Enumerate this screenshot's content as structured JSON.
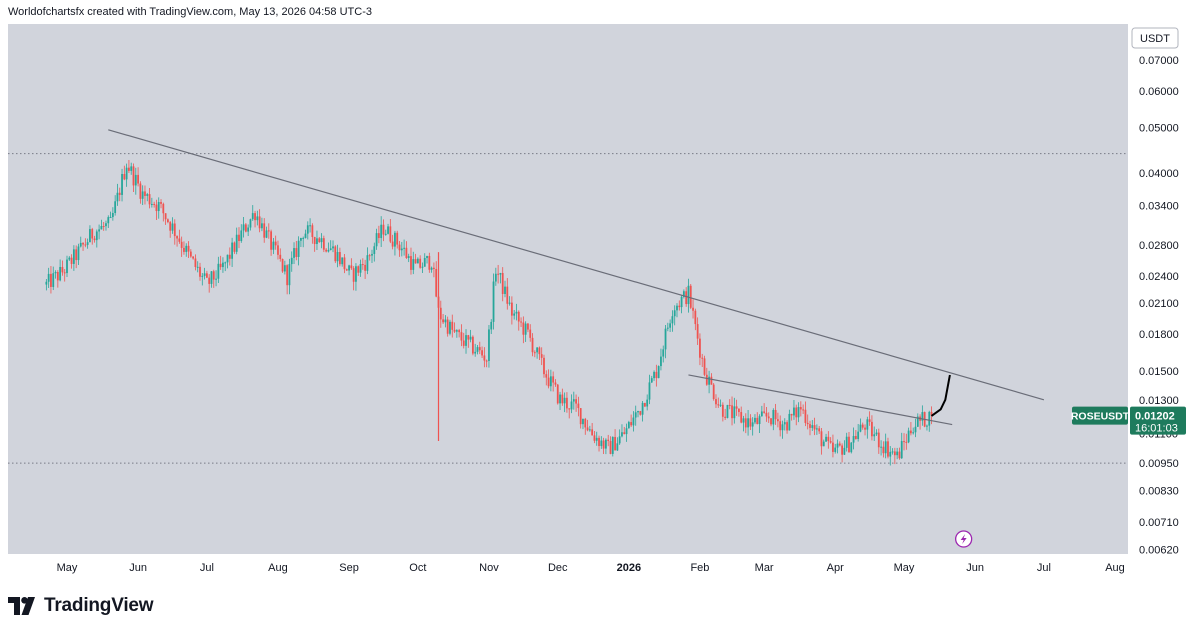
{
  "header": {
    "attribution": "Worldofchartsfx created with TradingView.com, May 13, 2026 04:58 UTC-3"
  },
  "chart": {
    "currency_label": "USDT",
    "symbol_label": "ROSEUSDT",
    "last_price": "0.01202",
    "countdown": "16:01:03",
    "colors": {
      "background": "#d1d4dc",
      "up": "#26a69a",
      "down": "#ef5350",
      "trendline": "#6a6d78",
      "badge": "#1e7b5d",
      "projection": "#000000",
      "flash_icon": "#9c27b0"
    },
    "icons": [
      "flash-icon"
    ]
  },
  "footer": {
    "brand": "TradingView"
  },
  "chart_data": {
    "type": "candlestick",
    "y_scale": "log",
    "y_ticks": [
      "0.07000",
      "0.06000",
      "0.05000",
      "0.04000",
      "0.03400",
      "0.02800",
      "0.02400",
      "0.02100",
      "0.01800",
      "0.01500",
      "0.01300",
      "0.01100",
      "0.00950",
      "0.00830",
      "0.00710",
      "0.00620"
    ],
    "x_ticks": [
      "May",
      "Jun",
      "Jul",
      "Aug",
      "Sep",
      "Oct",
      "Nov",
      "Dec",
      "2026",
      "Feb",
      "Mar",
      "Apr",
      "May",
      "Jun",
      "Jul",
      "Aug"
    ],
    "close_path": [
      [
        "2025-04-22",
        0.023
      ],
      [
        "2025-04-29",
        0.0245
      ],
      [
        "2025-05-06",
        0.027
      ],
      [
        "2025-05-13",
        0.03
      ],
      [
        "2025-05-20",
        0.031
      ],
      [
        "2025-05-27",
        0.042
      ],
      [
        "2025-06-03",
        0.036
      ],
      [
        "2025-06-10",
        0.034
      ],
      [
        "2025-06-17",
        0.03
      ],
      [
        "2025-06-24",
        0.026
      ],
      [
        "2025-07-01",
        0.023
      ],
      [
        "2025-07-08",
        0.025
      ],
      [
        "2025-07-15",
        0.029
      ],
      [
        "2025-07-22",
        0.033
      ],
      [
        "2025-07-29",
        0.028
      ],
      [
        "2025-08-05",
        0.024
      ],
      [
        "2025-08-12",
        0.03
      ],
      [
        "2025-08-19",
        0.029
      ],
      [
        "2025-08-26",
        0.027
      ],
      [
        "2025-09-02",
        0.024
      ],
      [
        "2025-09-09",
        0.026
      ],
      [
        "2025-09-16",
        0.0305
      ],
      [
        "2025-09-23",
        0.028
      ],
      [
        "2025-09-30",
        0.025
      ],
      [
        "2025-10-07",
        0.026
      ],
      [
        "2025-10-10",
        0.02
      ],
      [
        "2025-10-17",
        0.018
      ],
      [
        "2025-10-24",
        0.017
      ],
      [
        "2025-10-31",
        0.016
      ],
      [
        "2025-11-04",
        0.025
      ],
      [
        "2025-11-11",
        0.02
      ],
      [
        "2025-11-18",
        0.018
      ],
      [
        "2025-11-25",
        0.015
      ],
      [
        "2025-12-02",
        0.013
      ],
      [
        "2025-12-09",
        0.0125
      ],
      [
        "2025-12-16",
        0.011
      ],
      [
        "2025-12-23",
        0.0102
      ],
      [
        "2025-12-30",
        0.011
      ],
      [
        "2026-01-06",
        0.0125
      ],
      [
        "2026-01-13",
        0.015
      ],
      [
        "2026-01-20",
        0.0205
      ],
      [
        "2026-01-27",
        0.022
      ],
      [
        "2026-02-03",
        0.015
      ],
      [
        "2026-02-10",
        0.0125
      ],
      [
        "2026-02-17",
        0.012
      ],
      [
        "2026-02-24",
        0.0115
      ],
      [
        "2026-03-03",
        0.012
      ],
      [
        "2026-03-10",
        0.0115
      ],
      [
        "2026-03-17",
        0.0125
      ],
      [
        "2026-03-24",
        0.011
      ],
      [
        "2026-03-31",
        0.01
      ],
      [
        "2026-04-07",
        0.0105
      ],
      [
        "2026-04-14",
        0.0115
      ],
      [
        "2026-04-21",
        0.0105
      ],
      [
        "2026-04-28",
        0.0098
      ],
      [
        "2026-05-05",
        0.0115
      ],
      [
        "2026-05-13",
        0.01202
      ]
    ],
    "drawings": {
      "trendline_main": [
        [
          "2025-05-19",
          0.0495
        ],
        [
          "2026-07-01",
          0.013
        ]
      ],
      "trendline_secondary": [
        [
          "2026-01-27",
          0.0147
        ],
        [
          "2026-05-22",
          0.0115
        ]
      ],
      "support_level": 0.0095,
      "resistance_level": 0.044,
      "projection_path": [
        [
          "2026-05-13",
          0.012
        ],
        [
          "2026-05-17",
          0.0124
        ],
        [
          "2026-05-19",
          0.013
        ],
        [
          "2026-05-21",
          0.0147
        ]
      ]
    },
    "last_price": 0.01202
  }
}
